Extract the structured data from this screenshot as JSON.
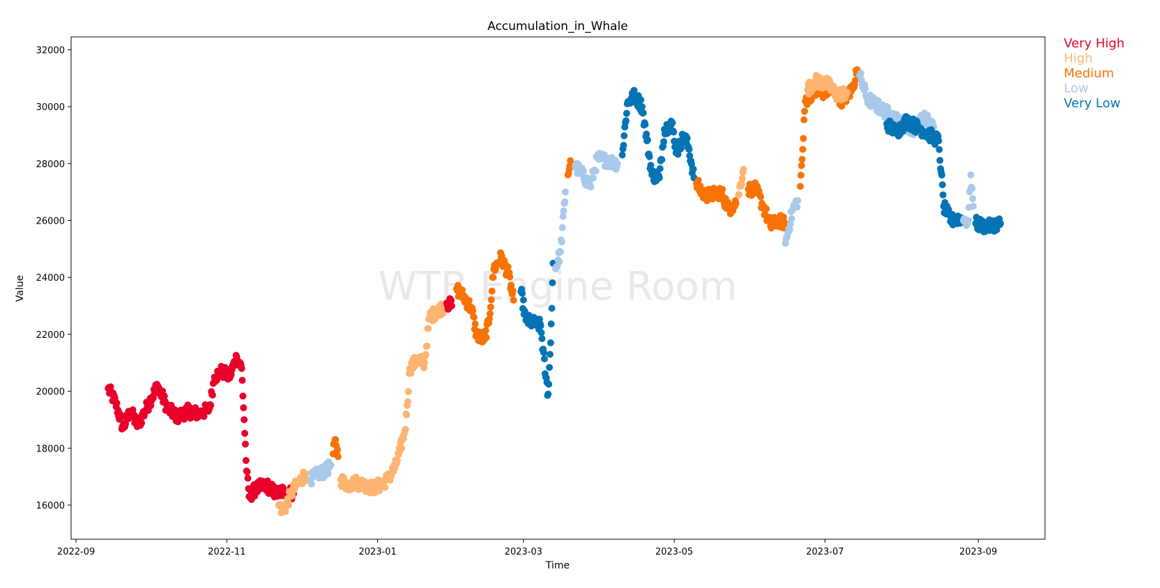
{
  "chart_data": {
    "type": "scatter",
    "title": "Accumulation_in_Whale",
    "xlabel": "Time",
    "ylabel": "Value",
    "watermark": "WTB Engine Room",
    "xlim": [
      "2022-08-30",
      "2023-09-28"
    ],
    "ylim": [
      14800,
      32450
    ],
    "grid": false,
    "legend_placement": "outside-top-right",
    "x_ticks": [
      "2022-09",
      "2022-11",
      "2023-01",
      "2023-03",
      "2023-05",
      "2023-07",
      "2023-09"
    ],
    "y_ticks": [
      16000,
      18000,
      20000,
      22000,
      24000,
      26000,
      28000,
      30000,
      32000
    ],
    "categories": [
      "Very High",
      "High",
      "Medium",
      "Low",
      "Very Low"
    ],
    "colors": {
      "Very High": "#e8002b",
      "High": "#fdb471",
      "Medium": "#f87306",
      "Low": "#a9c9ea",
      "Very Low": "#0574b4"
    },
    "segments": [
      {
        "category": "Very High",
        "points": [
          [
            "2022-09-14",
            20100
          ],
          [
            "2022-09-17",
            19600
          ],
          [
            "2022-09-20",
            18700
          ],
          [
            "2022-09-23",
            19300
          ],
          [
            "2022-09-26",
            18800
          ],
          [
            "2022-09-30",
            19500
          ],
          [
            "2022-10-04",
            20200
          ],
          [
            "2022-10-08",
            19400
          ],
          [
            "2022-10-12",
            19100
          ],
          [
            "2022-10-16",
            19300
          ],
          [
            "2022-10-21",
            19200
          ],
          [
            "2022-10-25",
            19400
          ],
          [
            "2022-10-27",
            20500
          ],
          [
            "2022-10-30",
            20700
          ],
          [
            "2022-11-02",
            20500
          ],
          [
            "2022-11-05",
            21200
          ],
          [
            "2022-11-07",
            20800
          ],
          [
            "2022-11-08",
            19000
          ],
          [
            "2022-11-09",
            17200
          ],
          [
            "2022-11-10",
            16300
          ],
          [
            "2022-11-13",
            16600
          ],
          [
            "2022-11-17",
            16700
          ],
          [
            "2022-11-21",
            16400
          ],
          [
            "2022-11-24",
            16500
          ],
          [
            "2022-11-28",
            16400
          ]
        ]
      },
      {
        "category": "High",
        "points": [
          [
            "2022-11-22",
            16000
          ],
          [
            "2022-11-24",
            15800
          ],
          [
            "2022-11-27",
            16400
          ],
          [
            "2022-11-30",
            16800
          ],
          [
            "2022-12-03",
            17100
          ]
        ]
      },
      {
        "category": "Low",
        "points": [
          [
            "2022-12-05",
            16900
          ],
          [
            "2022-12-08",
            17100
          ],
          [
            "2022-12-11",
            17200
          ],
          [
            "2022-12-13",
            17400
          ]
        ]
      },
      {
        "category": "Medium",
        "points": [
          [
            "2022-12-14",
            17800
          ],
          [
            "2022-12-15",
            18300
          ],
          [
            "2022-12-16",
            17700
          ]
        ]
      },
      {
        "category": "High",
        "points": [
          [
            "2022-12-17",
            16900
          ],
          [
            "2022-12-20",
            16700
          ],
          [
            "2022-12-23",
            16800
          ],
          [
            "2022-12-27",
            16700
          ],
          [
            "2022-12-30",
            16600
          ],
          [
            "2023-01-02",
            16700
          ],
          [
            "2023-01-05",
            16900
          ],
          [
            "2023-01-08",
            17300
          ],
          [
            "2023-01-10",
            17900
          ],
          [
            "2023-01-12",
            18600
          ],
          [
            "2023-01-13",
            19500
          ],
          [
            "2023-01-14",
            20800
          ],
          [
            "2023-01-17",
            21100
          ],
          [
            "2023-01-20",
            21000
          ],
          [
            "2023-01-22",
            22600
          ],
          [
            "2023-01-25",
            22800
          ],
          [
            "2023-01-28",
            23000
          ]
        ]
      },
      {
        "category": "Very High",
        "points": [
          [
            "2023-01-29",
            23100
          ],
          [
            "2023-01-31",
            23000
          ]
        ]
      },
      {
        "category": "Medium",
        "points": [
          [
            "2023-02-02",
            23600
          ],
          [
            "2023-02-05",
            23300
          ],
          [
            "2023-02-08",
            22900
          ],
          [
            "2023-02-10",
            22000
          ],
          [
            "2023-02-13",
            21800
          ],
          [
            "2023-02-15",
            22400
          ],
          [
            "2023-02-17",
            24300
          ],
          [
            "2023-02-20",
            24700
          ],
          [
            "2023-02-23",
            24100
          ],
          [
            "2023-02-25",
            23200
          ]
        ]
      },
      {
        "category": "Very Low",
        "points": [
          [
            "2023-02-28",
            23500
          ],
          [
            "2023-03-02",
            22500
          ],
          [
            "2023-03-05",
            22400
          ],
          [
            "2023-03-08",
            22300
          ],
          [
            "2023-03-10",
            20500
          ],
          [
            "2023-03-11",
            19900
          ],
          [
            "2023-03-12",
            21700
          ],
          [
            "2023-03-13",
            24500
          ]
        ]
      },
      {
        "category": "Low",
        "points": [
          [
            "2023-03-14",
            24300
          ],
          [
            "2023-03-16",
            24900
          ],
          [
            "2023-03-18",
            27000
          ]
        ]
      },
      {
        "category": "Medium",
        "points": [
          [
            "2023-03-19",
            27600
          ],
          [
            "2023-03-20",
            28100
          ]
        ]
      },
      {
        "category": "Low",
        "points": [
          [
            "2023-03-22",
            27900
          ],
          [
            "2023-03-25",
            27600
          ],
          [
            "2023-03-28",
            27200
          ],
          [
            "2023-03-31",
            28200
          ],
          [
            "2023-04-04",
            28100
          ],
          [
            "2023-04-08",
            28000
          ]
        ]
      },
      {
        "category": "Very Low",
        "points": [
          [
            "2023-04-10",
            28300
          ],
          [
            "2023-04-12",
            30100
          ],
          [
            "2023-04-15",
            30400
          ],
          [
            "2023-04-18",
            30000
          ],
          [
            "2023-04-20",
            28800
          ],
          [
            "2023-04-22",
            27600
          ],
          [
            "2023-04-25",
            27500
          ],
          [
            "2023-04-27",
            29200
          ],
          [
            "2023-04-30",
            29400
          ],
          [
            "2023-05-02",
            28400
          ],
          [
            "2023-05-05",
            29000
          ],
          [
            "2023-05-07",
            28500
          ],
          [
            "2023-05-09",
            27500
          ]
        ]
      },
      {
        "category": "Medium",
        "points": [
          [
            "2023-05-10",
            27300
          ],
          [
            "2023-05-13",
            26900
          ],
          [
            "2023-05-16",
            26900
          ],
          [
            "2023-05-20",
            27000
          ],
          [
            "2023-05-23",
            26400
          ],
          [
            "2023-05-26",
            26600
          ]
        ]
      },
      {
        "category": "High",
        "points": [
          [
            "2023-05-27",
            26900
          ],
          [
            "2023-05-29",
            27800
          ]
        ]
      },
      {
        "category": "Medium",
        "points": [
          [
            "2023-05-31",
            27100
          ],
          [
            "2023-06-03",
            27100
          ],
          [
            "2023-06-06",
            26500
          ],
          [
            "2023-06-09",
            25800
          ],
          [
            "2023-06-12",
            26000
          ],
          [
            "2023-06-15",
            25900
          ]
        ]
      },
      {
        "category": "Low",
        "points": [
          [
            "2023-06-15",
            25200
          ],
          [
            "2023-06-18",
            26400
          ],
          [
            "2023-06-20",
            26700
          ]
        ]
      },
      {
        "category": "Medium",
        "points": [
          [
            "2023-06-21",
            27200
          ],
          [
            "2023-06-22",
            28500
          ],
          [
            "2023-06-23",
            30200
          ],
          [
            "2023-06-26",
            30500
          ],
          [
            "2023-06-30",
            30500
          ],
          [
            "2023-07-04",
            30600
          ],
          [
            "2023-07-08",
            30200
          ],
          [
            "2023-07-12",
            30600
          ],
          [
            "2023-07-14",
            31300
          ]
        ]
      },
      {
        "category": "High",
        "points": [
          [
            "2023-06-24",
            30600
          ],
          [
            "2023-06-27",
            30900
          ],
          [
            "2023-07-02",
            30800
          ],
          [
            "2023-07-06",
            30400
          ],
          [
            "2023-07-10",
            30500
          ]
        ]
      },
      {
        "category": "Low",
        "points": [
          [
            "2023-07-15",
            31100
          ],
          [
            "2023-07-18",
            30300
          ],
          [
            "2023-07-21",
            30100
          ],
          [
            "2023-07-24",
            29900
          ],
          [
            "2023-07-28",
            29700
          ],
          [
            "2023-08-02",
            29300
          ],
          [
            "2023-08-06",
            29200
          ],
          [
            "2023-08-10",
            29600
          ],
          [
            "2023-08-14",
            29300
          ]
        ]
      },
      {
        "category": "Very Low",
        "points": [
          [
            "2023-07-26",
            29400
          ],
          [
            "2023-07-30",
            29100
          ],
          [
            "2023-08-03",
            29500
          ],
          [
            "2023-08-09",
            29200
          ],
          [
            "2023-08-16",
            28800
          ],
          [
            "2023-08-17",
            27700
          ],
          [
            "2023-08-18",
            26500
          ],
          [
            "2023-08-21",
            26000
          ],
          [
            "2023-08-25",
            26100
          ]
        ]
      },
      {
        "category": "Low",
        "points": [
          [
            "2023-08-26",
            26000
          ],
          [
            "2023-08-28",
            26000
          ],
          [
            "2023-08-29",
            27600
          ],
          [
            "2023-08-30",
            26500
          ]
        ]
      },
      {
        "category": "Very Low",
        "points": [
          [
            "2023-08-31",
            25900
          ],
          [
            "2023-09-03",
            25800
          ],
          [
            "2023-09-06",
            25800
          ],
          [
            "2023-09-09",
            25900
          ],
          [
            "2023-09-10",
            25900
          ]
        ]
      }
    ]
  }
}
